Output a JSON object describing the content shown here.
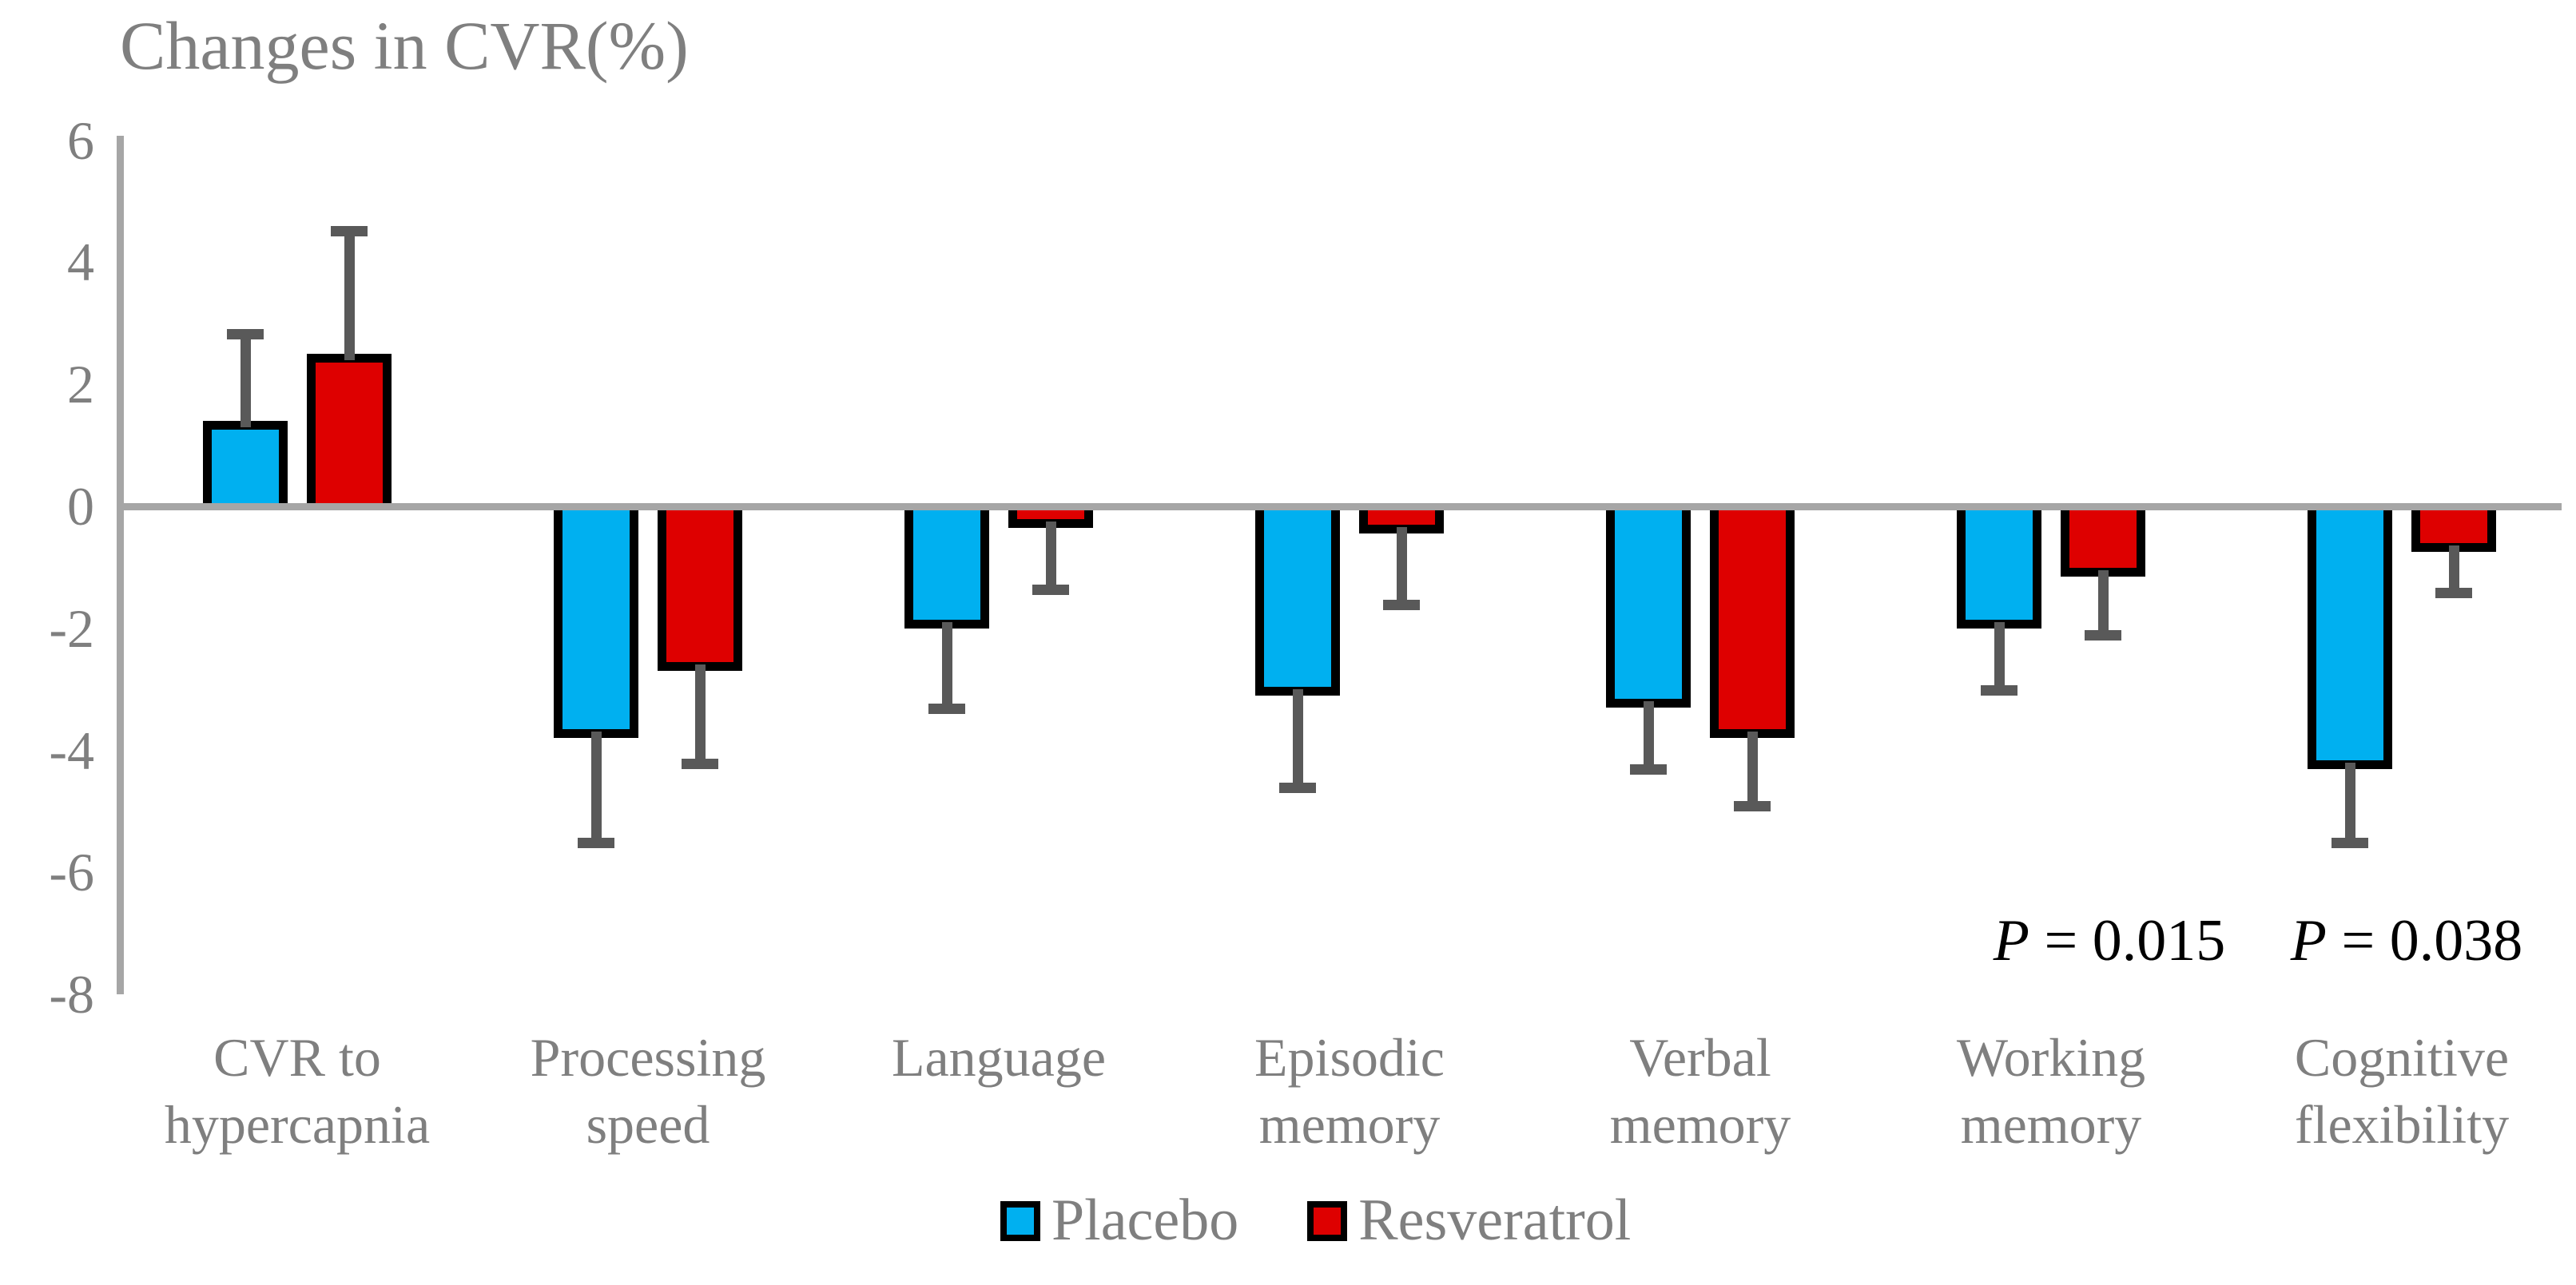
{
  "chart_data": {
    "type": "bar",
    "title": "Changes in CVR(%)",
    "categories": [
      "CVR to hypercapnia",
      "Processing speed",
      "Language",
      "Episodic memory",
      "Verbal memory",
      "Working memory",
      "Cognitive flexibility"
    ],
    "category_label_lines": [
      [
        "CVR to",
        "hypercapnia"
      ],
      [
        "Processing",
        "speed"
      ],
      [
        "Language"
      ],
      [
        "Episodic",
        "memory"
      ],
      [
        "Verbal",
        "memory"
      ],
      [
        "Working",
        "memory"
      ],
      [
        "Cognitive",
        "flexibility"
      ]
    ],
    "series": [
      {
        "name": "Placebo",
        "color": "#00B0F0",
        "values": [
          1.4,
          -3.8,
          -2.0,
          -3.1,
          -3.3,
          -2.0,
          -4.3
        ],
        "errors": [
          1.5,
          1.8,
          1.4,
          1.6,
          1.1,
          1.1,
          1.3
        ]
      },
      {
        "name": "Resveratrol",
        "color": "#DE0000",
        "values": [
          2.5,
          -2.7,
          -0.35,
          -0.45,
          -3.8,
          -1.15,
          -0.75
        ],
        "errors": [
          2.1,
          1.6,
          1.1,
          1.25,
          1.2,
          1.05,
          0.75
        ]
      }
    ],
    "yticks": [
      6,
      4,
      2,
      0,
      -2,
      -4,
      -6,
      -8
    ],
    "ylim": [
      -8,
      6
    ],
    "xlabel": "",
    "ylabel": "",
    "grid": false,
    "legend_position": "bottom",
    "error_bars": "one-sided outward with caps",
    "annotations": [
      {
        "symbol": "P",
        "rest": " = 0.015",
        "near_category": "Working memory",
        "x": 2640,
        "y": 1138
      },
      {
        "symbol": "P",
        "rest": " = 0.038",
        "near_category": "Cognitive flexibility",
        "x": 3012,
        "y": 1138
      }
    ]
  },
  "colors": {
    "axis": "#A6A6A6",
    "error_bar": "#595959",
    "gray_text": "#7F7F7F",
    "bar_border": "#000000",
    "annotation_text": "#000000",
    "background": "#FFFFFF"
  }
}
